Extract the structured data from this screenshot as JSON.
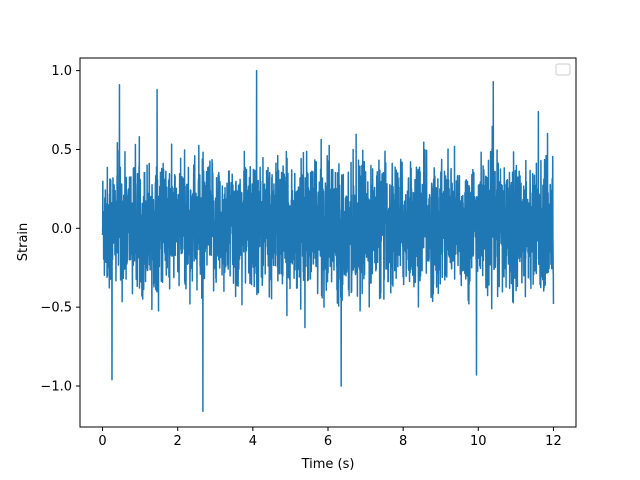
{
  "chart_data": {
    "type": "line",
    "xlabel": "Time (s)",
    "ylabel": "Strain",
    "xlim": [
      -0.6,
      12.6
    ],
    "ylim": [
      -1.26,
      1.08
    ],
    "x_ticks": [
      0,
      2,
      4,
      6,
      8,
      10,
      12
    ],
    "y_ticks": [
      -1.0,
      -0.5,
      0.0,
      0.5,
      1.0
    ],
    "x_tick_labels": [
      "0",
      "2",
      "4",
      "6",
      "8",
      "10",
      "12"
    ],
    "y_tick_labels": [
      "−1.0",
      "−0.5",
      "0.0",
      "0.5",
      "1.0"
    ],
    "grid": false,
    "legend": {
      "position": "top-right",
      "entries": []
    },
    "series": [
      {
        "color": "#1f77b4",
        "x_range": [
          0,
          12
        ],
        "approx_range": [
          -1.16,
          1.0
        ],
        "notable_peaks": [
          {
            "x": 4.1,
            "y": 1.0
          },
          {
            "x": 2.67,
            "y": -1.16
          },
          {
            "x": 0.25,
            "y": -0.96
          },
          {
            "x": 0.45,
            "y": 0.91
          },
          {
            "x": 1.45,
            "y": 0.88
          },
          {
            "x": 6.35,
            "y": -1.0
          },
          {
            "x": 9.95,
            "y": -0.93
          },
          {
            "x": 10.4,
            "y": 0.93
          },
          {
            "x": 11.6,
            "y": 0.74
          },
          {
            "x": 12.0,
            "y": -0.48
          }
        ]
      }
    ]
  }
}
